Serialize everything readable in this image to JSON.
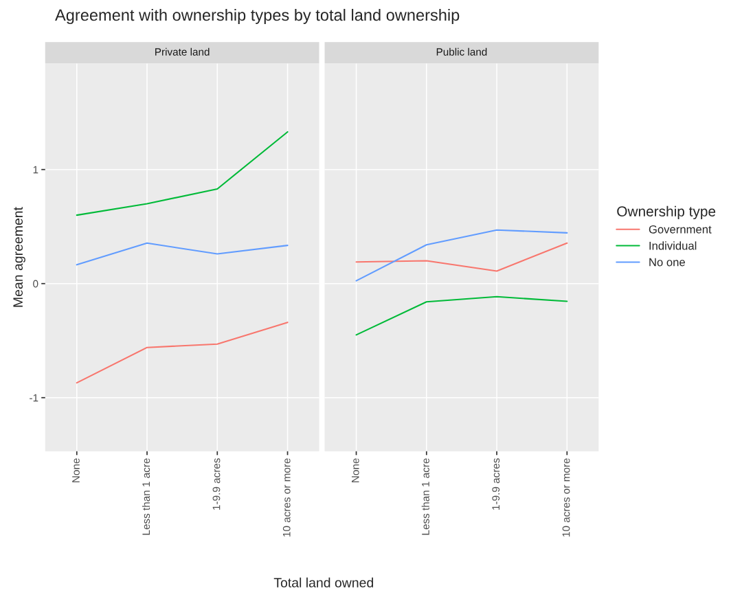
{
  "chart_data": [
    {
      "type": "line",
      "title": "Agreement with ownership types by total land ownership",
      "subtitle": "Private land",
      "legend_title": "Ownership type",
      "legend": "right",
      "xlabel": "Total land owned",
      "ylabel": "Mean agreement",
      "categories": [
        "None",
        "Less than 1 acre",
        "1-9.9 acres",
        "10 acres or more"
      ],
      "series": [
        {
          "name": "Government",
          "color": "#f8766d",
          "values": [
            -0.87,
            -0.56,
            -0.53,
            -0.34
          ]
        },
        {
          "name": "Individual",
          "color": "#00ba38",
          "values": [
            0.6,
            0.7,
            0.83,
            1.33
          ]
        },
        {
          "name": "No one",
          "color": "#619cff",
          "values": [
            0.165,
            0.355,
            0.26,
            0.335
          ]
        }
      ],
      "ylim": [
        -1.47,
        1.93
      ],
      "yticks": [
        -1,
        0,
        1
      ],
      "grid": true
    },
    {
      "type": "line",
      "subtitle": "Public land",
      "categories": [
        "None",
        "Less than 1 acre",
        "1-9.9 acres",
        "10 acres or more"
      ],
      "series": [
        {
          "color": "#f8766d",
          "values": [
            0.19,
            0.2,
            0.11,
            0.355
          ]
        },
        {
          "color": "#00ba38",
          "values": [
            -0.45,
            -0.16,
            -0.115,
            -0.155
          ]
        },
        {
          "color": "#619cff",
          "values": [
            0.025,
            0.34,
            0.47,
            0.445
          ]
        }
      ],
      "ylim": [
        -1.47,
        1.93
      ],
      "yticks": [
        -1,
        0,
        1
      ],
      "grid": true,
      "tick_labels": "x"
    }
  ]
}
